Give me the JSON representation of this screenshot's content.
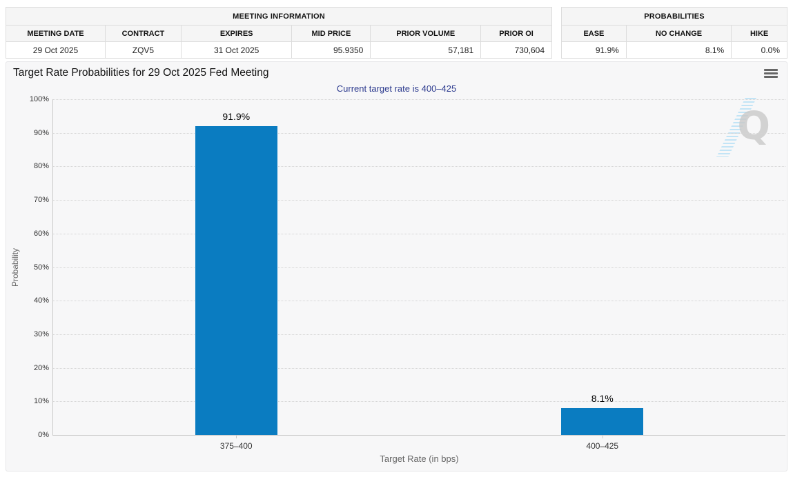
{
  "meeting_info_table": {
    "title": "MEETING INFORMATION",
    "columns": [
      "MEETING DATE",
      "CONTRACT",
      "EXPIRES",
      "MID PRICE",
      "PRIOR VOLUME",
      "PRIOR OI"
    ],
    "row": [
      "29 Oct 2025",
      "ZQV5",
      "31 Oct 2025",
      "95.9350",
      "57,181",
      "730,604"
    ]
  },
  "probabilities_table": {
    "title": "PROBABILITIES",
    "columns": [
      "EASE",
      "NO CHANGE",
      "HIKE"
    ],
    "row": [
      "91.9%",
      "8.1%",
      "0.0%"
    ]
  },
  "chart": {
    "title": "Target Rate Probabilities for 29 Oct 2025 Fed Meeting",
    "subtitle": "Current target rate is 400–425",
    "menu_icon": "hamburger-menu-icon",
    "watermark_letter": "Q"
  },
  "chart_data": {
    "type": "bar",
    "title": "Target Rate Probabilities for 29 Oct 2025 Fed Meeting",
    "subtitle": "Current target rate is 400–425",
    "categories": [
      "375–400",
      "400–425"
    ],
    "values": [
      91.9,
      8.1
    ],
    "value_labels": [
      "91.9%",
      "8.1%"
    ],
    "xlabel": "Target Rate (in bps)",
    "ylabel": "Probability",
    "ylim": [
      0,
      100
    ],
    "yticks": [
      0,
      10,
      20,
      30,
      40,
      50,
      60,
      70,
      80,
      90,
      100
    ],
    "ytick_labels": [
      "0%",
      "10%",
      "20%",
      "30%",
      "40%",
      "50%",
      "60%",
      "70%",
      "80%",
      "90%",
      "100%"
    ],
    "grid": "horizontal-dotted",
    "legend": "none",
    "bar_color": "#0a7cc1"
  },
  "colors": {
    "bar": "#0a7cc1",
    "subtitle_text": "#2c3a8e",
    "panel_bg": "#f7f7f8",
    "table_header_bg": "#f5f5f5",
    "table_border": "#dcdcdc",
    "axis_line": "#c9c9c9",
    "watermark_gray": "#c9c9c9",
    "watermark_blue": "#b9e1f5"
  }
}
